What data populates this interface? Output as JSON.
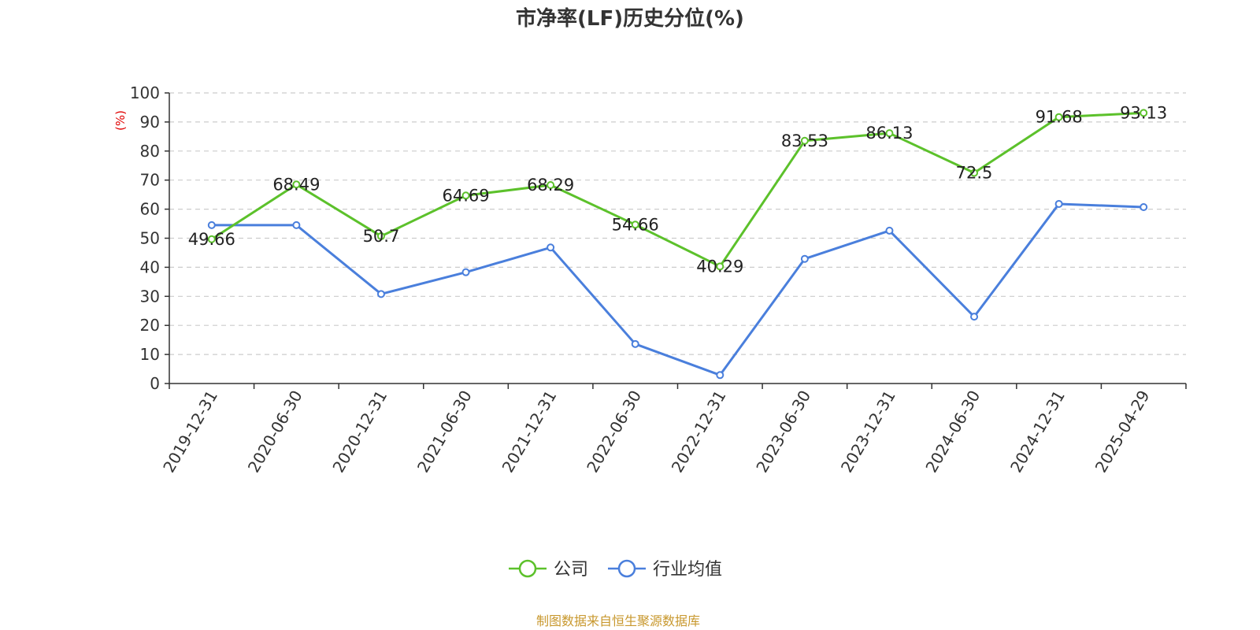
{
  "chart_data": {
    "type": "line",
    "title": "市净率(LF)历史分位(%)",
    "ylabel": "(%)",
    "ylim": [
      0,
      100
    ],
    "yticks": [
      0,
      10,
      20,
      30,
      40,
      50,
      60,
      70,
      80,
      90,
      100
    ],
    "categories": [
      "2019-12-31",
      "2020-06-30",
      "2020-12-31",
      "2021-06-30",
      "2021-12-31",
      "2022-06-30",
      "2022-12-31",
      "2023-06-30",
      "2023-12-31",
      "2024-06-30",
      "2024-12-31",
      "2025-04-29"
    ],
    "grid": "horizontal-dashed",
    "legend_position": "bottom-center",
    "series": [
      {
        "name": "公司",
        "color": "#5cc12b",
        "values": [
          49.66,
          68.49,
          50.7,
          64.69,
          68.29,
          54.66,
          40.29,
          83.53,
          86.13,
          72.5,
          91.68,
          93.13
        ],
        "labels": [
          "49.66",
          "68.49",
          "50.7",
          "64.69",
          "68.29",
          "54.66",
          "40.29",
          "83.53",
          "86.13",
          "72.5",
          "91.68",
          "93.13"
        ]
      },
      {
        "name": "行业均值",
        "color": "#4a7fdc",
        "values": [
          54.5,
          54.5,
          30.8,
          38.3,
          46.8,
          13.6,
          2.9,
          42.9,
          52.6,
          23.0,
          61.8,
          60.7
        ]
      }
    ]
  },
  "source": "制图数据来自恒生聚源数据库",
  "colors": {
    "unit_label": "#e00000",
    "source_text": "#c8982e",
    "axis": "#333333",
    "grid": "#cccccc"
  }
}
